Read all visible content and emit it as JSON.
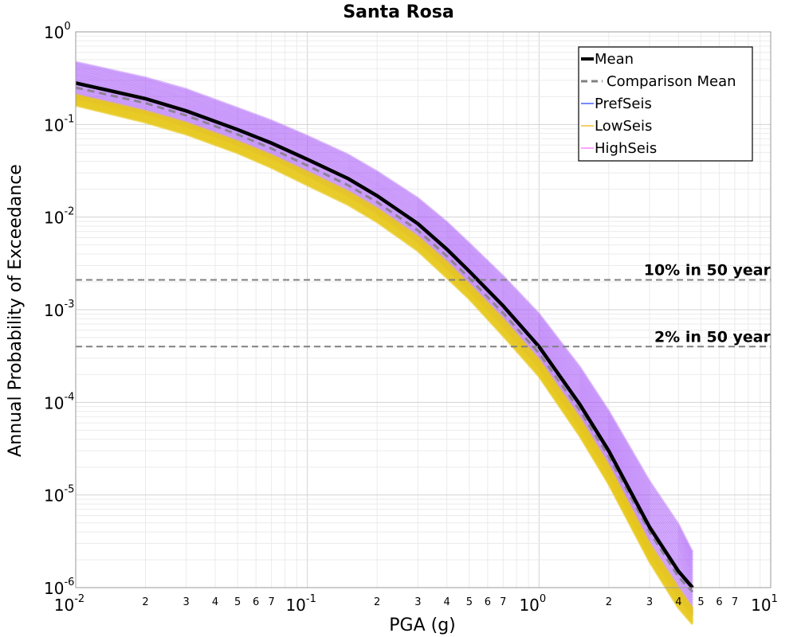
{
  "chart_data": {
    "type": "line",
    "title": "Santa Rosa",
    "xlabel": "PGA (g)",
    "ylabel": "Annual Probability of Exceedance",
    "x_scale": "log",
    "y_scale": "log",
    "xlim": [
      0.01,
      10
    ],
    "ylim": [
      1e-06,
      1
    ],
    "grid": true,
    "legend_position": "top-right",
    "x_major_ticks": [
      {
        "base": "10",
        "exp": "-2"
      },
      {
        "base": "10",
        "exp": "-1"
      },
      {
        "base": "10",
        "exp": "0"
      },
      {
        "base": "10",
        "exp": "1"
      }
    ],
    "x_minor_ticks": [
      "2",
      "3",
      "4",
      "5",
      "6",
      "7"
    ],
    "y_major_ticks": [
      {
        "base": "10",
        "exp": "0"
      },
      {
        "base": "10",
        "exp": "-1"
      },
      {
        "base": "10",
        "exp": "-2"
      },
      {
        "base": "10",
        "exp": "-3"
      },
      {
        "base": "10",
        "exp": "-4"
      },
      {
        "base": "10",
        "exp": "-5"
      },
      {
        "base": "10",
        "exp": "-6"
      }
    ],
    "x": [
      0.01,
      0.02,
      0.03,
      0.05,
      0.07,
      0.1,
      0.15,
      0.2,
      0.3,
      0.4,
      0.5,
      0.7,
      1.0,
      1.5,
      2.0,
      3.0,
      4.0,
      4.6
    ],
    "series": [
      {
        "name": "Mean",
        "color": "#000000",
        "style": "solid",
        "values": [
          0.28,
          0.19,
          0.14,
          0.088,
          0.063,
          0.042,
          0.026,
          0.017,
          0.0085,
          0.0045,
          0.0026,
          0.0011,
          0.0004,
          9.5e-05,
          3e-05,
          4.5e-06,
          1.5e-06,
          1e-06
        ]
      },
      {
        "name": "Comparison Mean",
        "color": "#808080",
        "style": "dashed",
        "values": [
          0.25,
          0.17,
          0.125,
          0.078,
          0.055,
          0.036,
          0.022,
          0.0145,
          0.0072,
          0.0038,
          0.0022,
          0.00092,
          0.00034,
          8.2e-05,
          2.6e-05,
          4e-06,
          1.3e-06,
          9e-07
        ]
      }
    ],
    "bands": [
      {
        "name": "HighSeis",
        "color": "#a855f7",
        "upper": [
          0.47,
          0.32,
          0.24,
          0.15,
          0.11,
          0.075,
          0.047,
          0.031,
          0.016,
          0.0088,
          0.0052,
          0.0023,
          0.0009,
          0.00024,
          8e-05,
          1.4e-05,
          4.8e-06,
          2.4e-06
        ],
        "lower": [
          0.19,
          0.13,
          0.095,
          0.06,
          0.043,
          0.028,
          0.017,
          0.011,
          0.0054,
          0.0028,
          0.0016,
          0.00066,
          0.00024,
          5.5e-05,
          1.7e-05,
          2.4e-06,
          8e-07,
          5e-07
        ]
      },
      {
        "name": "LowSeis",
        "color": "#e8c81a",
        "upper": [
          0.21,
          0.14,
          0.105,
          0.066,
          0.047,
          0.031,
          0.019,
          0.0125,
          0.0062,
          0.0033,
          0.0019,
          0.0008,
          0.00029,
          6.8e-05,
          2.1e-05,
          3e-06,
          1e-06,
          6e-07
        ],
        "lower": [
          0.16,
          0.105,
          0.078,
          0.049,
          0.034,
          0.022,
          0.0135,
          0.0088,
          0.0043,
          0.0022,
          0.0013,
          0.00052,
          0.00019,
          4.3e-05,
          1.3e-05,
          1.9e-06,
          6e-07,
          4e-07
        ]
      }
    ],
    "legend": [
      {
        "label": "Mean",
        "color": "#000000",
        "style": "thick"
      },
      {
        "label": "Comparison Mean",
        "color": "#808080",
        "style": "dashed"
      },
      {
        "label": "PrefSeis",
        "color": "#1a3cff",
        "style": "thin"
      },
      {
        "label": "LowSeis",
        "color": "#f0b000",
        "style": "thin"
      },
      {
        "label": "HighSeis",
        "color": "#ff66ff",
        "style": "thin"
      }
    ],
    "reference_lines": [
      {
        "label": "10% in 50 year",
        "y": 0.0021
      },
      {
        "label": "2% in 50 year",
        "y": 0.0004
      }
    ]
  }
}
